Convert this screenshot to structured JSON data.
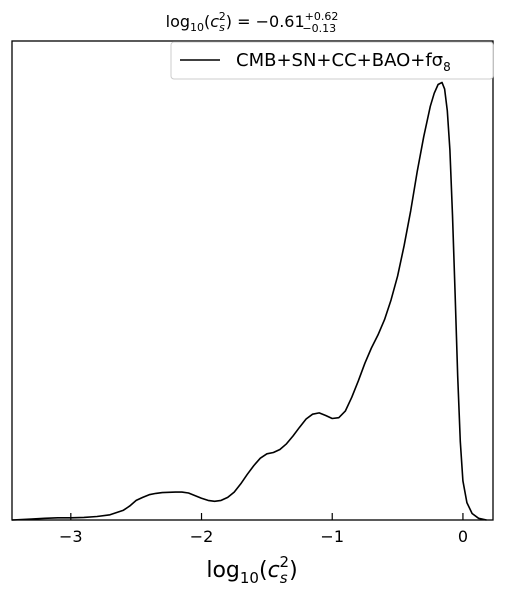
{
  "chart_data": {
    "type": "line",
    "title": {
      "base": "log",
      "sub": "10",
      "paren_open": "(",
      "var": "c",
      "var_sub": "s",
      "var_sup": "2",
      "paren_close": ")",
      "equals": " = −0.61",
      "err_plus": "+0.62",
      "err_minus": "−0.13"
    },
    "xlabel": {
      "base": "log",
      "sub": "10",
      "paren_open": "(",
      "var": "c",
      "var_sub": "s",
      "var_sup": "2",
      "paren_close": ")"
    },
    "xlim": [
      -3.45,
      0.23
    ],
    "ylim": [
      0,
      1.1
    ],
    "x_ticks": [
      {
        "value": -3,
        "label": "−3"
      },
      {
        "value": -2,
        "label": "−2"
      },
      {
        "value": -1,
        "label": "−1"
      },
      {
        "value": 0,
        "label": "0"
      }
    ],
    "y_ticks_visible": false,
    "grid": false,
    "legend": {
      "position": "top-right",
      "label": "CMB+SN+CC+BAO+fσ",
      "label_sub": "8",
      "color": "#000000"
    },
    "series": [
      {
        "name": "CMB+SN+CC+BAO+fσ8",
        "color": "#000000",
        "points": [
          [
            -3.45,
            0.0
          ],
          [
            -3.3,
            0.002
          ],
          [
            -3.2,
            0.004
          ],
          [
            -3.1,
            0.005
          ],
          [
            -3.0,
            0.005
          ],
          [
            -2.9,
            0.006
          ],
          [
            -2.8,
            0.008
          ],
          [
            -2.7,
            0.012
          ],
          [
            -2.6,
            0.022
          ],
          [
            -2.55,
            0.032
          ],
          [
            -2.5,
            0.045
          ],
          [
            -2.45,
            0.052
          ],
          [
            -2.4,
            0.058
          ],
          [
            -2.35,
            0.061
          ],
          [
            -2.3,
            0.063
          ],
          [
            -2.2,
            0.064
          ],
          [
            -2.15,
            0.064
          ],
          [
            -2.1,
            0.062
          ],
          [
            -2.05,
            0.056
          ],
          [
            -2.0,
            0.05
          ],
          [
            -1.95,
            0.045
          ],
          [
            -1.9,
            0.043
          ],
          [
            -1.85,
            0.045
          ],
          [
            -1.8,
            0.052
          ],
          [
            -1.75,
            0.064
          ],
          [
            -1.7,
            0.083
          ],
          [
            -1.65,
            0.105
          ],
          [
            -1.6,
            0.125
          ],
          [
            -1.55,
            0.142
          ],
          [
            -1.5,
            0.152
          ],
          [
            -1.45,
            0.155
          ],
          [
            -1.4,
            0.162
          ],
          [
            -1.35,
            0.175
          ],
          [
            -1.3,
            0.193
          ],
          [
            -1.25,
            0.213
          ],
          [
            -1.2,
            0.232
          ],
          [
            -1.15,
            0.243
          ],
          [
            -1.1,
            0.246
          ],
          [
            -1.05,
            0.24
          ],
          [
            -1.0,
            0.233
          ],
          [
            -0.95,
            0.235
          ],
          [
            -0.9,
            0.25
          ],
          [
            -0.85,
            0.282
          ],
          [
            -0.8,
            0.32
          ],
          [
            -0.75,
            0.36
          ],
          [
            -0.7,
            0.395
          ],
          [
            -0.65,
            0.425
          ],
          [
            -0.6,
            0.46
          ],
          [
            -0.55,
            0.505
          ],
          [
            -0.5,
            0.56
          ],
          [
            -0.45,
            0.63
          ],
          [
            -0.4,
            0.71
          ],
          [
            -0.35,
            0.8
          ],
          [
            -0.3,
            0.88
          ],
          [
            -0.25,
            0.95
          ],
          [
            -0.22,
            0.98
          ],
          [
            -0.19,
            1.0
          ],
          [
            -0.16,
            1.005
          ],
          [
            -0.14,
            0.99
          ],
          [
            -0.12,
            0.94
          ],
          [
            -0.1,
            0.85
          ],
          [
            -0.08,
            0.7
          ],
          [
            -0.06,
            0.52
          ],
          [
            -0.04,
            0.33
          ],
          [
            -0.02,
            0.18
          ],
          [
            0.0,
            0.09
          ],
          [
            0.03,
            0.04
          ],
          [
            0.07,
            0.015
          ],
          [
            0.12,
            0.004
          ],
          [
            0.18,
            0.0
          ]
        ]
      }
    ]
  }
}
